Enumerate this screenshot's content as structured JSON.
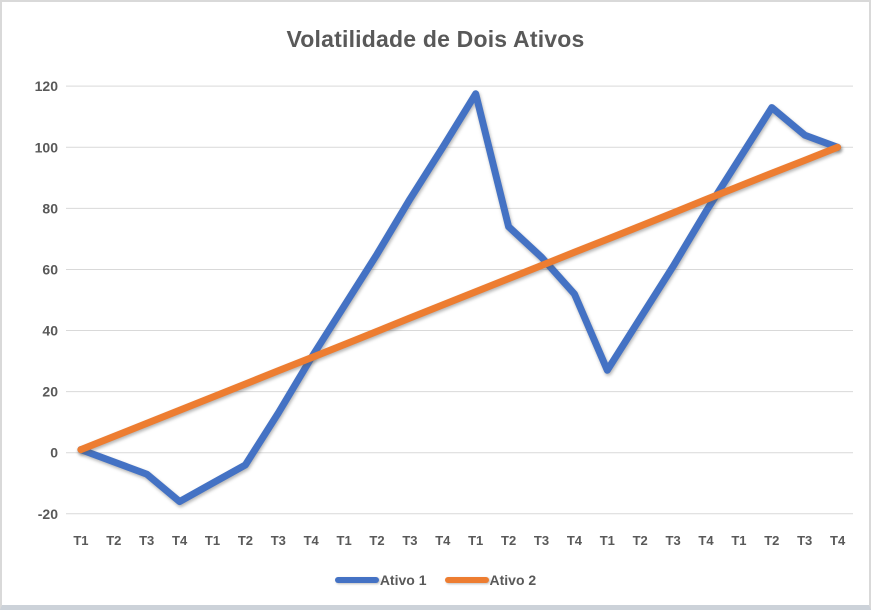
{
  "chart_data": {
    "type": "line",
    "title": "Volatilidade de Dois Ativos",
    "categories": [
      "T1",
      "T2",
      "T3",
      "T4",
      "T1",
      "T2",
      "T3",
      "T4",
      "T1",
      "T2",
      "T3",
      "T4",
      "T1",
      "T2",
      "T3",
      "T4",
      "T1",
      "T2",
      "T3",
      "T4",
      "T1",
      "T2",
      "T3",
      "T4"
    ],
    "series": [
      {
        "name": "Ativo 1",
        "color": "#4472c4",
        "values": [
          1,
          -3,
          -7,
          -16,
          -10,
          -4,
          13,
          31,
          48,
          65,
          83,
          100,
          117.5,
          74,
          64,
          52,
          27,
          44,
          61,
          79,
          96,
          113,
          104,
          100
        ]
      },
      {
        "name": "Ativo 2",
        "color": "#ed7d31",
        "values": [
          1,
          5.3,
          9.6,
          13.9,
          18.2,
          22.5,
          26.8,
          31.1,
          35.4,
          39.7,
          44.1,
          48.4,
          52.7,
          57,
          61.3,
          65.6,
          69.9,
          74.2,
          78.5,
          82.9,
          87.2,
          91.5,
          95.7,
          100
        ]
      }
    ],
    "ylim": [
      -20,
      120
    ],
    "yticks": [
      120,
      100,
      80,
      60,
      40,
      20,
      0,
      -20
    ],
    "xlabel": "",
    "ylabel": "",
    "grid": "horizontal",
    "legend_position": "bottom",
    "grid_color": "#d9d9d9",
    "text_color": "#595959",
    "background_color": "#ffffff"
  }
}
